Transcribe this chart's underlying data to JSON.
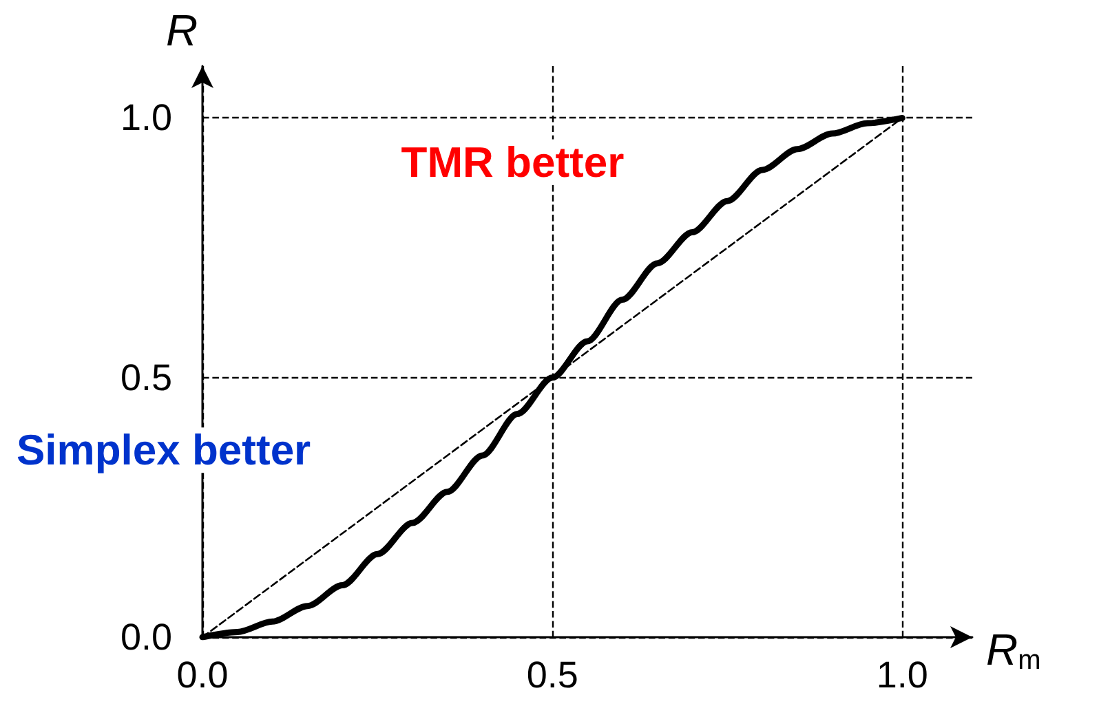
{
  "chart_data": {
    "type": "line",
    "xlabel": "R$_{m}$",
    "ylabel": "R",
    "x": [
      0,
      0.05,
      0.1,
      0.15,
      0.2,
      0.25,
      0.3,
      0.35,
      0.4,
      0.45,
      0.5,
      0.55,
      0.6,
      0.65,
      0.7,
      0.75,
      0.8,
      0.85,
      0.9,
      0.95,
      1.0
    ],
    "series": [
      {
        "color": "#000000",
        "line_style": "solid",
        "values": [
          0,
          0.01,
          0.03,
          0.06,
          0.1,
          0.16,
          0.22,
          0.28,
          0.35,
          0.43,
          0.5,
          0.57,
          0.65,
          0.72,
          0.78,
          0.84,
          0.9,
          0.94,
          0.97,
          0.99,
          1.0
        ]
      },
      {
        "color": "#000000",
        "line_style": "dashed",
        "x": [
          0,
          1.0
        ],
        "values": [
          0,
          1.0
        ]
      }
    ],
    "xlim": [
      0,
      1.1
    ],
    "ylim": [
      0,
      1.1
    ],
    "xticks": [
      {
        "value": 0,
        "label": "0.0"
      },
      {
        "value": 0.5,
        "label": "0.5"
      },
      {
        "value": 1.0,
        "label": "1.0"
      }
    ],
    "yticks": [
      {
        "value": 0,
        "label": "0.0"
      },
      {
        "value": 0.5,
        "label": "0.5"
      },
      {
        "value": 1.0,
        "label": "1.0"
      }
    ],
    "grid": true,
    "marker": "none",
    "annotations": [
      "TMR better",
      "Simplex better"
    ]
  }
}
